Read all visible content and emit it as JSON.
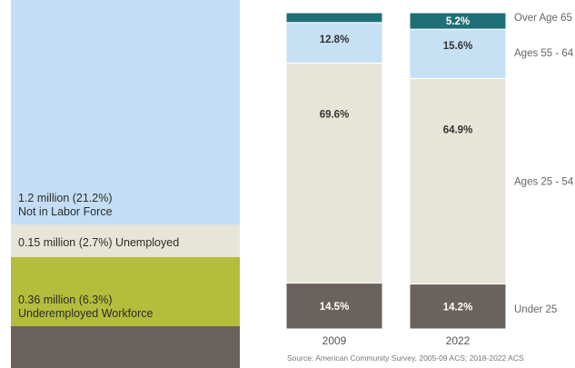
{
  "colors": {
    "not_in_labor_force": "#c3def4",
    "unemployed": "#e7e5d7",
    "underemployed": "#b4bd3c",
    "employed": "#6a625c",
    "over_65": "#1f6f77",
    "age_55_64": "#c6e0f4",
    "age_25_54": "#e7e5d7",
    "under_25": "#6a625c"
  },
  "left_panel": {
    "segments": [
      {
        "key": "not_in_labor_force",
        "value_label": "1.2 million (21.2%)",
        "name_label": "Not in Labor Force"
      },
      {
        "key": "unemployed",
        "value_label": "0.15 million (2.7%) Unemployed"
      },
      {
        "key": "underemployed",
        "value_label": "0.36 million (6.3%)",
        "name_label": "Underemployed Workforce"
      },
      {
        "key": "employed"
      }
    ]
  },
  "chart_data": {
    "type": "bar",
    "stacked": true,
    "normalized": true,
    "categories": [
      "2009",
      "2022"
    ],
    "series": [
      {
        "name": "Under 25",
        "values": [
          14.5,
          14.2
        ],
        "labels": [
          "14.5%",
          "14.2%"
        ],
        "color": "#6a625c"
      },
      {
        "name": "Ages 25 - 54",
        "values": [
          69.6,
          64.9
        ],
        "labels": [
          "69.6%",
          "64.9%"
        ],
        "color": "#e7e5d7"
      },
      {
        "name": "Ages 55 - 64",
        "values": [
          12.8,
          15.6
        ],
        "labels": [
          "12.8%",
          "15.6%"
        ],
        "color": "#c6e0f4"
      },
      {
        "name": "Over Age 65",
        "values": [
          3.1,
          5.2
        ],
        "labels": [
          "",
          "5.2%"
        ],
        "color": "#1f6f77"
      }
    ],
    "source": "Source: American Community Survey, 2005-09 ACS; 2018-2022 ACS",
    "legend_placement": "right"
  }
}
